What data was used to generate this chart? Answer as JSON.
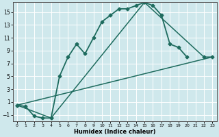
{
  "xlabel": "Humidex (Indice chaleur)",
  "background_color": "#cfe8ec",
  "grid_color": "#ffffff",
  "line_color": "#1e6b5e",
  "xlim": [
    -0.5,
    23.5
  ],
  "ylim": [
    -2,
    16.5
  ],
  "xticks": [
    0,
    1,
    2,
    3,
    4,
    5,
    6,
    7,
    8,
    9,
    10,
    11,
    12,
    13,
    14,
    15,
    16,
    17,
    18,
    19,
    20,
    21,
    22,
    23
  ],
  "yticks": [
    -1,
    1,
    3,
    5,
    7,
    9,
    11,
    13,
    15
  ],
  "series": [
    {
      "x": [
        0,
        1,
        2,
        3,
        4,
        5,
        6,
        7,
        8,
        9,
        10,
        11,
        12,
        13,
        14,
        15,
        16,
        17,
        18,
        19,
        20
      ],
      "y": [
        0.5,
        0.3,
        -1.2,
        -1.5,
        -1.5,
        5.0,
        8.0,
        10.0,
        8.5,
        11.0,
        13.5,
        14.5,
        15.5,
        15.5,
        16.0,
        16.5,
        16.0,
        14.5,
        10.0,
        9.5,
        8.0
      ],
      "marker": "D",
      "markersize": 2.5,
      "linewidth": 1.3
    },
    {
      "x": [
        0,
        4,
        15,
        22,
        23
      ],
      "y": [
        0.5,
        -1.5,
        16.5,
        8.0,
        8.0
      ],
      "marker": "D",
      "markersize": 2.5,
      "linewidth": 1.1
    },
    {
      "x": [
        0,
        23
      ],
      "y": [
        0.5,
        8.0
      ],
      "marker": null,
      "markersize": 0,
      "linewidth": 1.1
    }
  ]
}
